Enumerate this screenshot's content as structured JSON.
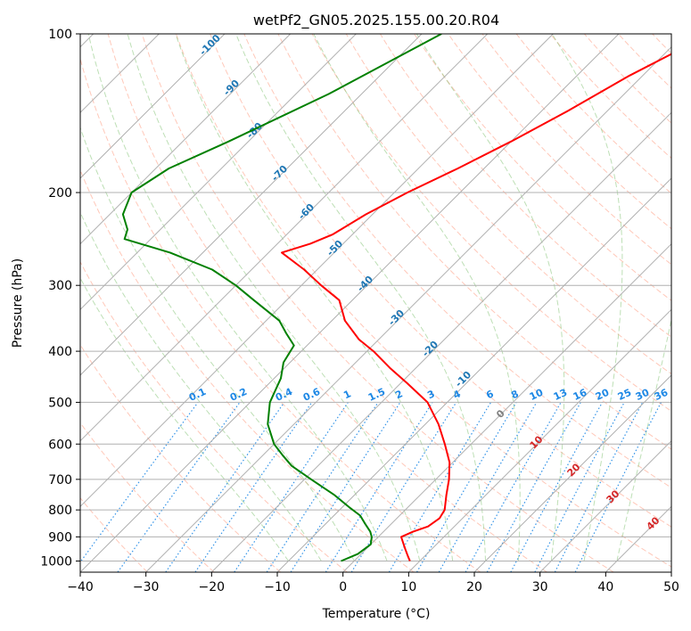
{
  "chart_data": {
    "type": "line",
    "title": "wetPf2_GN05.2025.155.00.20.R04",
    "xlabel": "Temperature (°C)",
    "ylabel": "Pressure (hPa)",
    "xlim": [
      -40,
      50
    ],
    "ylim": [
      1050,
      100
    ],
    "y_scale": "log",
    "skew": true,
    "grid": true,
    "x_ticks": [
      -40,
      -30,
      -20,
      -10,
      0,
      10,
      20,
      30,
      40,
      50
    ],
    "y_ticks": [
      1000,
      900,
      800,
      700,
      600,
      500,
      400,
      300,
      200,
      100
    ],
    "series": [
      {
        "color": "#ff0000",
        "points": [
          [
            100,
            -26
          ],
          [
            120,
            -32
          ],
          [
            140,
            -36
          ],
          [
            160,
            -40
          ],
          [
            180,
            -44
          ],
          [
            200,
            -48
          ],
          [
            220,
            -51
          ],
          [
            240,
            -53
          ],
          [
            250,
            -55
          ],
          [
            260,
            -58
          ],
          [
            280,
            -52
          ],
          [
            300,
            -47
          ],
          [
            320,
            -42
          ],
          [
            350,
            -38
          ],
          [
            380,
            -33
          ],
          [
            400,
            -29
          ],
          [
            430,
            -24
          ],
          [
            460,
            -19
          ],
          [
            500,
            -13
          ],
          [
            550,
            -8
          ],
          [
            600,
            -4
          ],
          [
            650,
            -0.5
          ],
          [
            700,
            2
          ],
          [
            750,
            4
          ],
          [
            800,
            6
          ],
          [
            830,
            6.5
          ],
          [
            860,
            6
          ],
          [
            880,
            4.5
          ],
          [
            900,
            3.5
          ],
          [
            920,
            4.5
          ],
          [
            950,
            6
          ],
          [
            980,
            7.5
          ],
          [
            1000,
            8.5
          ]
        ]
      },
      {
        "color": "#008000",
        "points": [
          [
            100,
            -67
          ],
          [
            130,
            -75
          ],
          [
            160,
            -83
          ],
          [
            180,
            -88
          ],
          [
            200,
            -90
          ],
          [
            220,
            -88
          ],
          [
            235,
            -85
          ],
          [
            245,
            -84
          ],
          [
            260,
            -75
          ],
          [
            280,
            -66
          ],
          [
            300,
            -60
          ],
          [
            320,
            -55
          ],
          [
            350,
            -48
          ],
          [
            370,
            -45
          ],
          [
            390,
            -42
          ],
          [
            420,
            -41
          ],
          [
            450,
            -39
          ],
          [
            500,
            -37
          ],
          [
            550,
            -34
          ],
          [
            600,
            -30
          ],
          [
            630,
            -27
          ],
          [
            660,
            -24
          ],
          [
            700,
            -19
          ],
          [
            750,
            -13
          ],
          [
            790,
            -9
          ],
          [
            820,
            -6
          ],
          [
            850,
            -4
          ],
          [
            880,
            -2
          ],
          [
            900,
            -1
          ],
          [
            930,
            0
          ],
          [
            970,
            -0.5
          ],
          [
            1000,
            -2
          ]
        ]
      }
    ],
    "dry_adiabats_labels": [
      "-100",
      "-90",
      "-80",
      "-70",
      "-60",
      "-50",
      "-40",
      "-30",
      "-20",
      "-10"
    ],
    "mixing_ratio_labels": [
      "0.1",
      "0.2",
      "0.4",
      "0.6",
      "1",
      "1.5",
      "2",
      "3",
      "4",
      "6",
      "8",
      "10",
      "13",
      "16",
      "20",
      "25",
      "30",
      "36"
    ],
    "moist_adiabat_labels": [
      "0",
      "10",
      "20",
      "30",
      "40"
    ],
    "colors": {
      "temperature": "#ff0000",
      "dewpoint": "#008000",
      "dry_adiabat_label": "#1f77b4",
      "mixing_ratio": "#1e88e5",
      "moist_label": "#d62728"
    }
  }
}
